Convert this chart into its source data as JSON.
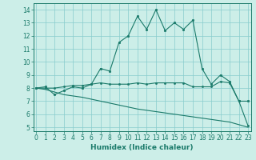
{
  "xlabel": "Humidex (Indice chaleur)",
  "x": [
    0,
    1,
    2,
    3,
    4,
    5,
    6,
    7,
    8,
    9,
    10,
    11,
    12,
    13,
    14,
    15,
    16,
    17,
    18,
    19,
    20,
    21,
    22,
    23
  ],
  "line1": [
    8.0,
    8.1,
    7.5,
    7.8,
    8.1,
    8.0,
    8.3,
    9.5,
    9.3,
    11.5,
    12.0,
    13.5,
    12.5,
    14.0,
    12.4,
    13.0,
    12.5,
    13.2,
    9.5,
    8.3,
    9.0,
    8.5,
    7.0,
    7.0
  ],
  "line2": [
    8.0,
    8.0,
    8.0,
    8.1,
    8.2,
    8.2,
    8.3,
    8.4,
    8.3,
    8.3,
    8.3,
    8.4,
    8.3,
    8.4,
    8.4,
    8.4,
    8.4,
    8.1,
    8.1,
    8.1,
    8.5,
    8.4,
    7.0,
    5.1
  ],
  "line3": [
    8.0,
    7.9,
    7.7,
    7.5,
    7.4,
    7.3,
    7.15,
    7.0,
    6.85,
    6.7,
    6.55,
    6.4,
    6.3,
    6.2,
    6.1,
    6.0,
    5.9,
    5.8,
    5.7,
    5.6,
    5.5,
    5.4,
    5.2,
    5.0
  ],
  "color": "#1a7a6a",
  "bg_color": "#cceee8",
  "grid_color": "#88cccc",
  "ylim": [
    4.7,
    14.5
  ],
  "xlim": [
    -0.3,
    23.3
  ],
  "yticks": [
    5,
    6,
    7,
    8,
    9,
    10,
    11,
    12,
    13,
    14
  ],
  "xticks": [
    0,
    1,
    2,
    3,
    4,
    5,
    6,
    7,
    8,
    9,
    10,
    11,
    12,
    13,
    14,
    15,
    16,
    17,
    18,
    19,
    20,
    21,
    22,
    23
  ]
}
